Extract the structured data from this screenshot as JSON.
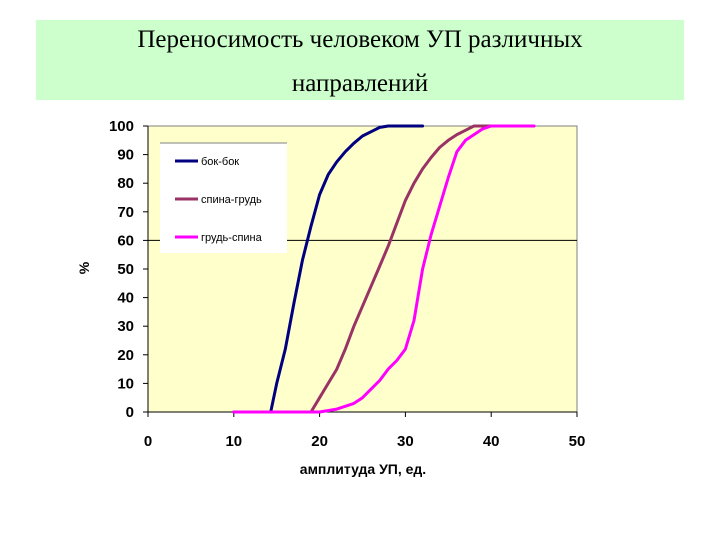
{
  "header": {
    "title_line1": "Переносимость человеком УП различных",
    "title_line2": "направлений"
  },
  "chart_data": {
    "type": "line",
    "xlabel": "амплитуда УП, ед.",
    "ylabel": "%",
    "xlim": [
      0,
      50
    ],
    "ylim": [
      0,
      100
    ],
    "x_ticks": [
      0,
      10,
      20,
      30,
      40,
      50
    ],
    "y_ticks": [
      0,
      10,
      20,
      30,
      40,
      50,
      60,
      70,
      80,
      90,
      100
    ],
    "grid": "horizontal line at 60",
    "legend_position": "top-left",
    "plot_background": "#ffffcc",
    "series": [
      {
        "name": "бок-бок",
        "color": "#000080",
        "points": [
          [
            10,
            0
          ],
          [
            14.3,
            0
          ],
          [
            15,
            10
          ],
          [
            16,
            22
          ],
          [
            17,
            38
          ],
          [
            18,
            53
          ],
          [
            19,
            65
          ],
          [
            20,
            76
          ],
          [
            21,
            83
          ],
          [
            22,
            87.5
          ],
          [
            23,
            91
          ],
          [
            24,
            94
          ],
          [
            25,
            96.5
          ],
          [
            26,
            98
          ],
          [
            27,
            99.5
          ],
          [
            28,
            100
          ],
          [
            32,
            100
          ]
        ]
      },
      {
        "name": "спина-грудь",
        "color": "#993366",
        "points": [
          [
            14,
            0
          ],
          [
            19,
            0
          ],
          [
            20,
            5
          ],
          [
            21,
            10
          ],
          [
            22,
            15
          ],
          [
            23,
            22
          ],
          [
            24,
            30
          ],
          [
            25,
            37
          ],
          [
            26,
            44
          ],
          [
            27,
            51
          ],
          [
            28,
            58
          ],
          [
            29,
            66
          ],
          [
            30,
            74
          ],
          [
            31,
            80
          ],
          [
            32,
            85
          ],
          [
            33,
            89
          ],
          [
            34,
            92.5
          ],
          [
            35,
            95
          ],
          [
            36,
            97
          ],
          [
            37,
            98.5
          ],
          [
            38,
            100
          ],
          [
            41,
            100
          ]
        ]
      },
      {
        "name": "грудь-спина",
        "color": "#ff00ff",
        "points": [
          [
            10,
            0
          ],
          [
            20,
            0
          ],
          [
            22,
            1
          ],
          [
            24,
            3
          ],
          [
            25,
            5
          ],
          [
            26,
            8
          ],
          [
            27,
            11
          ],
          [
            28,
            15
          ],
          [
            29,
            18
          ],
          [
            30,
            22
          ],
          [
            31,
            32
          ],
          [
            32,
            50
          ],
          [
            33,
            62
          ],
          [
            34,
            72
          ],
          [
            35,
            82
          ],
          [
            36,
            91
          ],
          [
            37,
            95
          ],
          [
            38,
            97
          ],
          [
            39,
            99
          ],
          [
            40,
            100
          ],
          [
            45,
            100
          ]
        ]
      }
    ]
  }
}
